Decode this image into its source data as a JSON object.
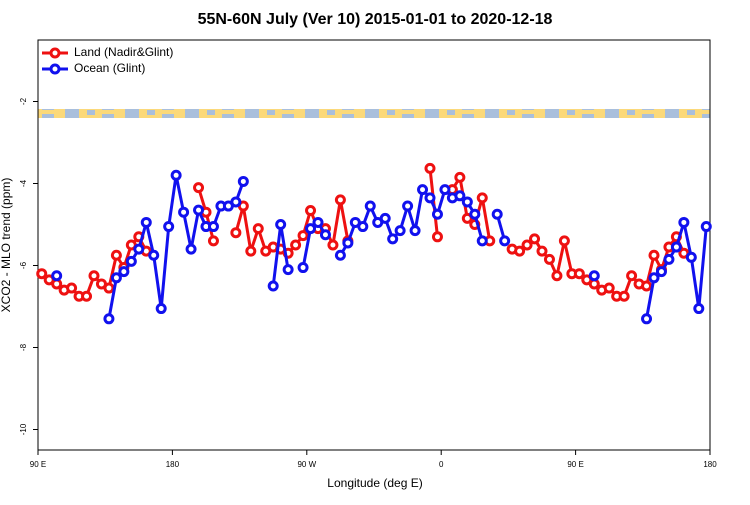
{
  "chart_data": {
    "type": "line",
    "title": "55N-60N July (Ver 10)   2015-01-01 to 2020-12-18",
    "x_label": "Longitude (deg E)",
    "y_label": "XCO2 - MLO trend (ppm)",
    "x": [
      92.5,
      97.5,
      102.5,
      107.5,
      112.5,
      117.5,
      122.5,
      127.5,
      132.5,
      137.5,
      142.5,
      147.5,
      152.5,
      157.5,
      162.5,
      167.5,
      172.5,
      177.5,
      182.5,
      187.5,
      192.5,
      197.5,
      202.5,
      207.5,
      212.5,
      217.5,
      222.5,
      227.5,
      232.5,
      237.5,
      242.5,
      247.5,
      252.5,
      257.5,
      262.5,
      267.5,
      272.5,
      277.5,
      282.5,
      287.5,
      292.5,
      297.5,
      302.5,
      307.5,
      312.5,
      317.5,
      322.5,
      327.5,
      332.5,
      337.5,
      342.5,
      347.5,
      352.5,
      357.5,
      362.5,
      367.5,
      372.5,
      377.5,
      382.5,
      387.5,
      392.5,
      397.5,
      402.5,
      407.5,
      412.5,
      417.5,
      422.5,
      427.5,
      432.5,
      437.5,
      442.5,
      447.5,
      452.5,
      457.5,
      462.5,
      467.5,
      472.5,
      477.5,
      482.5,
      487.5,
      492.5,
      497.5,
      502.5,
      507.5,
      512.5,
      517.5,
      522.5,
      527.5,
      532.5,
      537.5
    ],
    "series": [
      {
        "name": "Land (Nadir&Glint)",
        "color": "#ee1111",
        "values": [
          -6.2,
          -6.35,
          -6.45,
          -6.6,
          -6.55,
          -6.75,
          -6.75,
          -6.25,
          -6.45,
          -6.55,
          -5.75,
          -6.05,
          -5.5,
          -5.3,
          -5.65,
          null,
          null,
          null,
          null,
          null,
          null,
          -4.1,
          -4.7,
          -5.4,
          null,
          null,
          -5.2,
          -4.55,
          -5.65,
          -5.1,
          -5.65,
          -5.55,
          -5.6,
          -5.7,
          -5.5,
          -5.27,
          -4.66,
          -5.1,
          -5.1,
          -5.5,
          -4.4,
          -5.4,
          null,
          null,
          null,
          null,
          null,
          null,
          null,
          null,
          null,
          null,
          -3.63,
          -5.3,
          null,
          -4.15,
          -3.85,
          -4.85,
          -5.0,
          -4.35,
          -5.4,
          null,
          null,
          -5.6,
          -5.65,
          -5.5,
          -5.35,
          -5.65,
          -5.85,
          -6.25,
          -5.4,
          -6.2,
          -6.2,
          -6.35,
          -6.45,
          -6.6,
          -6.55,
          -6.75,
          -6.75,
          -6.25,
          -6.45,
          -6.5,
          -5.75,
          -6.1,
          -5.55,
          -5.3,
          -5.7,
          null,
          null,
          null
        ]
      },
      {
        "name": "Ocean (Glint)",
        "color": "#1111ee",
        "values": [
          null,
          null,
          -6.25,
          null,
          null,
          null,
          null,
          null,
          null,
          -7.3,
          -6.3,
          -6.15,
          -5.9,
          -5.6,
          -4.95,
          -5.75,
          -7.05,
          -5.05,
          -3.8,
          -4.7,
          -5.6,
          -4.65,
          -5.05,
          -5.05,
          -4.55,
          -4.55,
          -4.45,
          -3.95,
          null,
          null,
          null,
          -6.5,
          -5.0,
          -6.1,
          null,
          -6.05,
          -5.1,
          -4.95,
          -5.25,
          null,
          -5.75,
          -5.45,
          -4.95,
          -5.05,
          -4.55,
          -4.95,
          -4.85,
          -5.35,
          -5.15,
          -4.55,
          -5.15,
          -4.15,
          -4.35,
          -4.75,
          -4.15,
          -4.35,
          -4.3,
          -4.45,
          -4.75,
          -5.4,
          null,
          -4.75,
          -5.4,
          null,
          null,
          null,
          null,
          null,
          null,
          null,
          null,
          null,
          null,
          null,
          -6.25,
          null,
          null,
          null,
          null,
          null,
          null,
          -7.3,
          -6.3,
          -6.15,
          -5.85,
          -5.55,
          -4.95,
          -5.8,
          -7.05,
          -5.05
        ]
      }
    ],
    "xlim": [
      90,
      540
    ],
    "xticks": [
      {
        "value": 90,
        "label": "90 E"
      },
      180,
      {
        "value": 270,
        "label": "90 W"
      },
      {
        "value": 360,
        "label": "0"
      },
      {
        "value": 450,
        "label": "90 E"
      },
      180
    ],
    "ylim": [
      -10.5,
      -0.5
    ],
    "yticks": [
      -2,
      -4,
      -6,
      -8,
      -10
    ],
    "legend": "top-left"
  }
}
